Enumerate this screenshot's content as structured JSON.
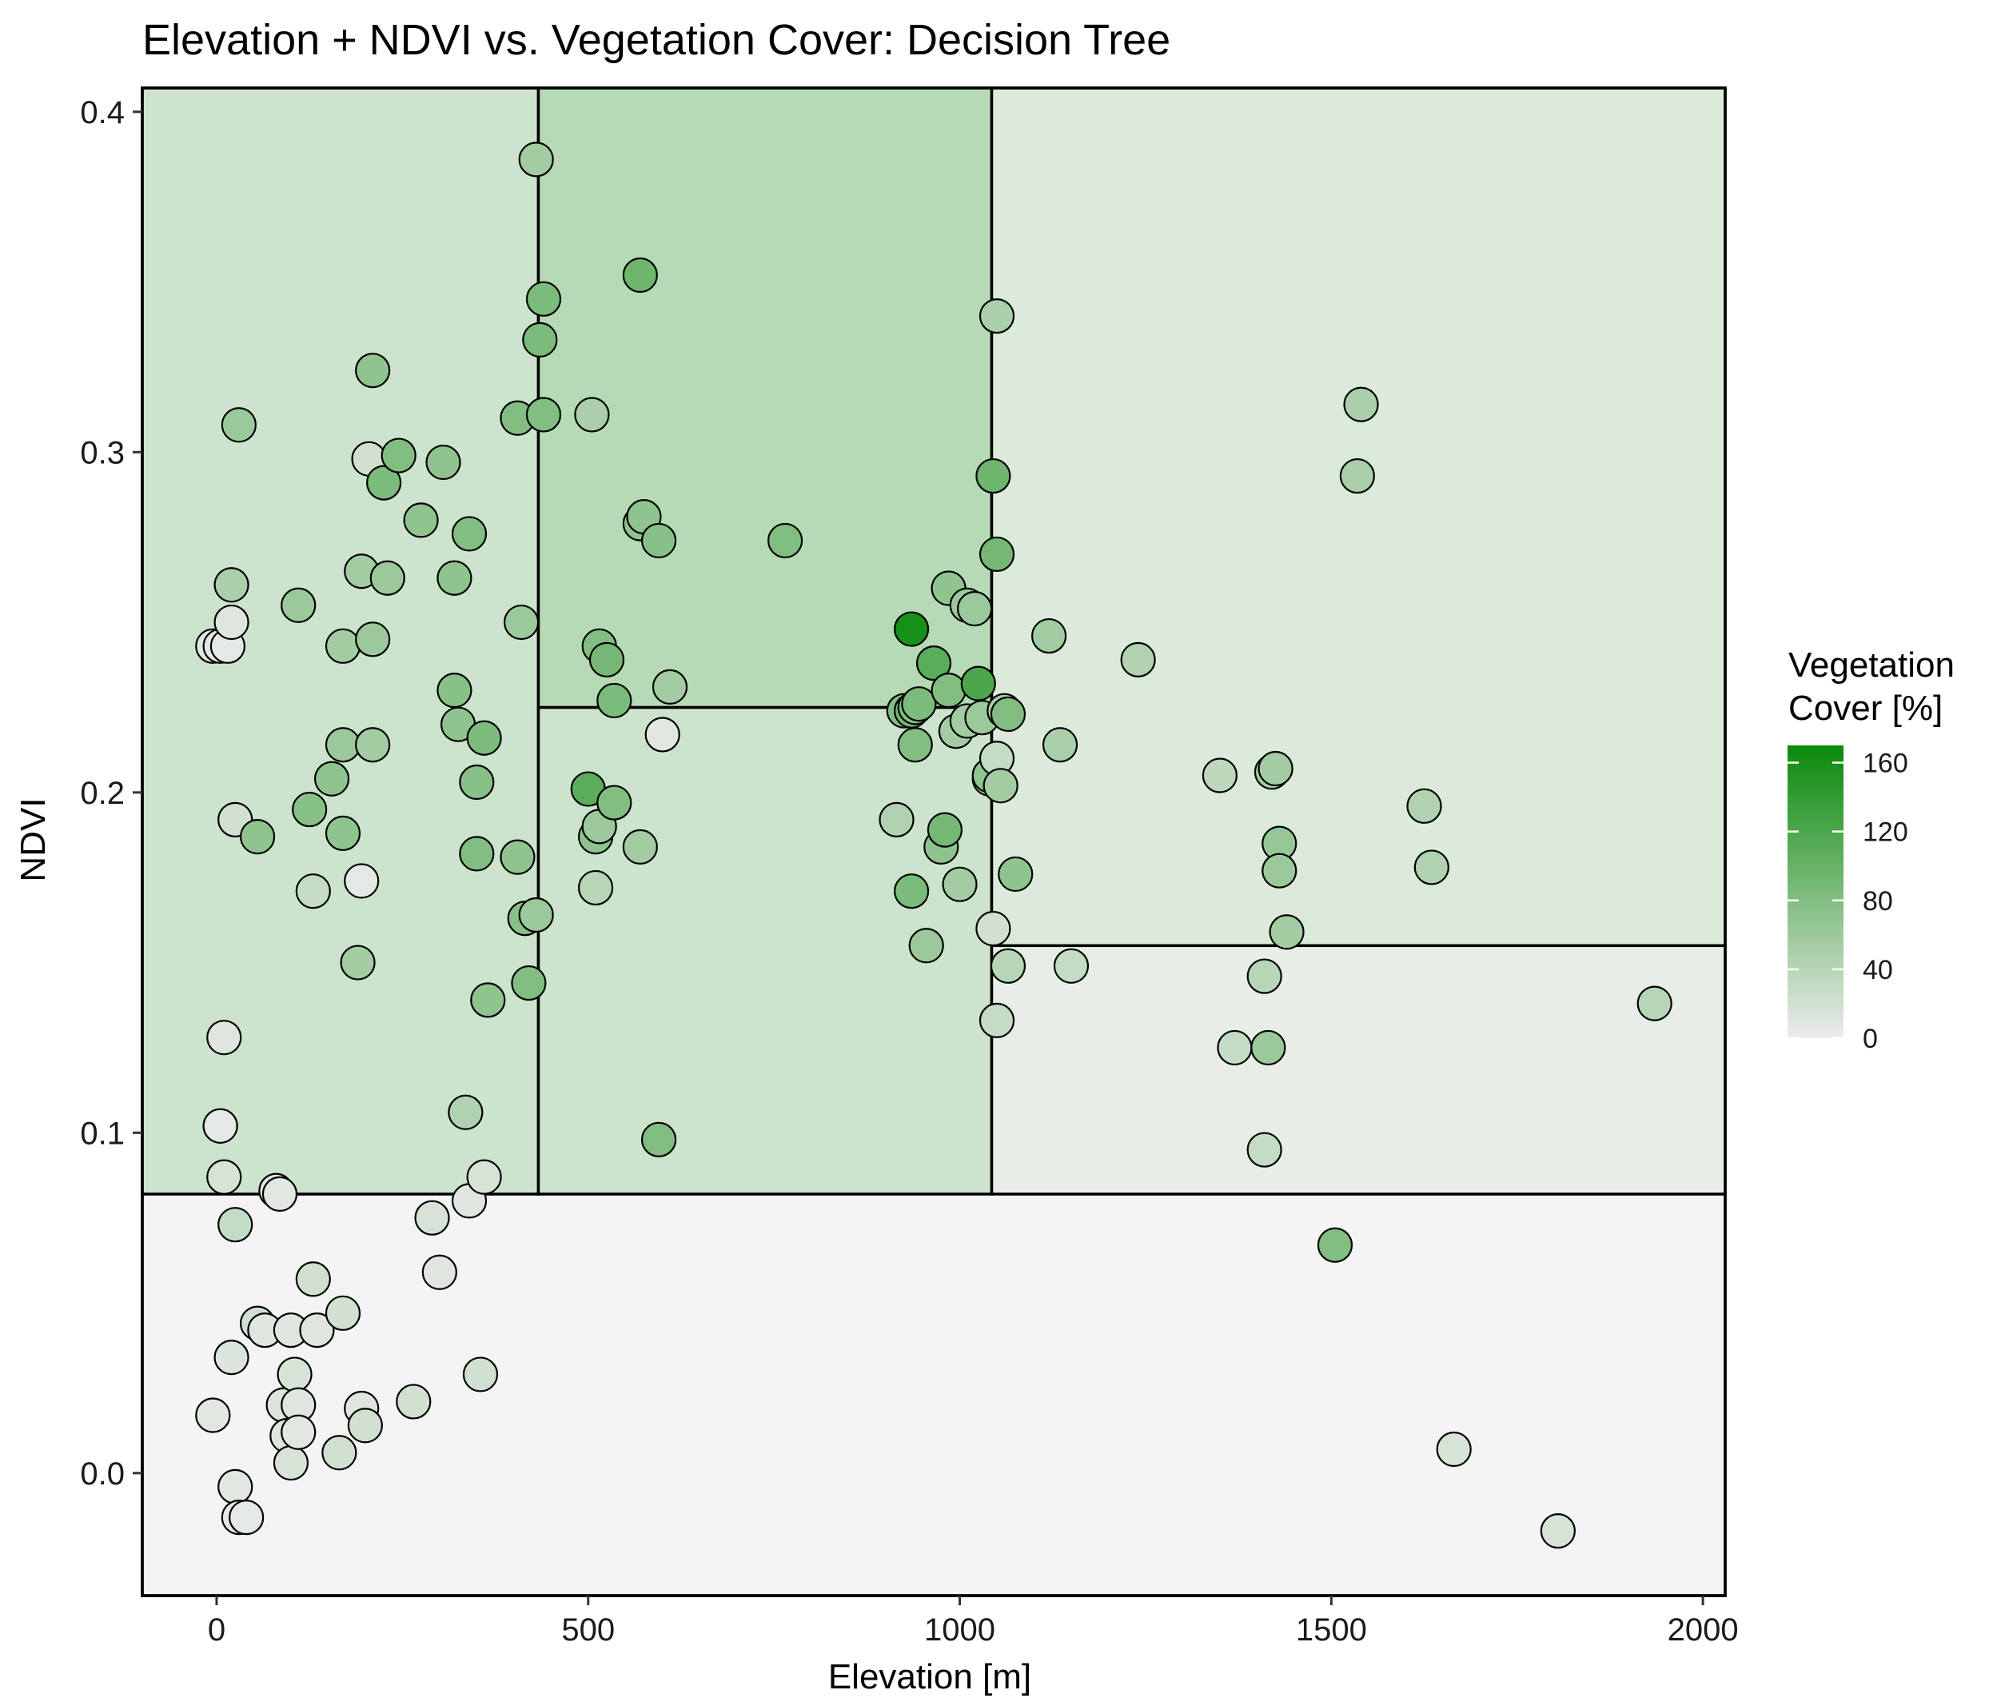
{
  "chart_data": {
    "type": "scatter",
    "title": "Elevation + NDVI vs. Vegetation Cover: Decision Tree",
    "xlabel": "Elevation [m]",
    "ylabel": "NDVI",
    "xlim": [
      -100,
      2030
    ],
    "ylim": [
      -0.036,
      0.407
    ],
    "x_ticks": [
      0,
      500,
      1000,
      1500,
      2000
    ],
    "y_ticks": [
      0.0,
      0.1,
      0.2,
      0.3,
      0.4
    ],
    "y_tick_labels": [
      "0.0",
      "0.1",
      "0.2",
      "0.3",
      "0.4"
    ],
    "grid": false,
    "legend": {
      "title_line1": "Vegetation",
      "title_line2": "Cover [%]",
      "placement": "right",
      "min": 0,
      "max": 170,
      "ticks": [
        0,
        40,
        80,
        120,
        160
      ],
      "color_low": "#ececec",
      "color_high": "#0a8a0a"
    },
    "regions": [
      {
        "x0": -100,
        "x1": 2030,
        "y0": -0.036,
        "y1": 0.082,
        "value": 2
      },
      {
        "x0": -100,
        "x1": 433,
        "y0": 0.082,
        "y1": 0.407,
        "value": 55
      },
      {
        "x0": 433,
        "x1": 1043,
        "y0": 0.082,
        "y1": 0.225,
        "value": 55
      },
      {
        "x0": 433,
        "x1": 1043,
        "y0": 0.225,
        "y1": 0.407,
        "value": 85
      },
      {
        "x0": 1043,
        "x1": 2030,
        "y0": 0.082,
        "y1": 0.155,
        "value": 20
      },
      {
        "x0": 1043,
        "x1": 2030,
        "y0": 0.155,
        "y1": 0.407,
        "value": 35
      }
    ],
    "points": [
      [
        -5,
        0.017,
        8
      ],
      [
        5,
        0.102,
        5
      ],
      [
        10,
        0.128,
        10
      ],
      [
        10,
        0.087,
        15
      ],
      [
        20,
        0.034,
        12
      ],
      [
        25,
        -0.004,
        8
      ],
      [
        25,
        0.073,
        30
      ],
      [
        30,
        -0.013,
        5
      ],
      [
        40,
        -0.013,
        5
      ],
      [
        55,
        0.044,
        20
      ],
      [
        65,
        0.042,
        10
      ],
      [
        80,
        0.083,
        10
      ],
      [
        85,
        0.082,
        8
      ],
      [
        90,
        0.02,
        12
      ],
      [
        95,
        0.011,
        10
      ],
      [
        100,
        0.003,
        15
      ],
      [
        100,
        0.042,
        10
      ],
      [
        105,
        0.029,
        15
      ],
      [
        110,
        0.02,
        10
      ],
      [
        110,
        0.012,
        8
      ],
      [
        130,
        0.057,
        20
      ],
      [
        135,
        0.042,
        10
      ],
      [
        165,
        0.006,
        20
      ],
      [
        170,
        0.047,
        20
      ],
      [
        195,
        0.019,
        10
      ],
      [
        200,
        0.014,
        20
      ],
      [
        265,
        0.021,
        20
      ],
      [
        290,
        0.075,
        15
      ],
      [
        300,
        0.059,
        10
      ],
      [
        340,
        0.08,
        10
      ],
      [
        355,
        0.029,
        20
      ],
      [
        360,
        0.087,
        15
      ],
      [
        -5,
        0.243,
        8
      ],
      [
        5,
        0.243,
        8
      ],
      [
        5,
        0.102,
        5
      ],
      [
        15,
        0.243,
        5
      ],
      [
        20,
        0.25,
        10
      ],
      [
        20,
        0.261,
        50
      ],
      [
        25,
        0.192,
        20
      ],
      [
        30,
        0.308,
        60
      ],
      [
        55,
        0.187,
        70
      ],
      [
        110,
        0.255,
        60
      ],
      [
        125,
        0.195,
        75
      ],
      [
        130,
        0.171,
        30
      ],
      [
        155,
        0.204,
        70
      ],
      [
        170,
        0.188,
        70
      ],
      [
        170,
        0.243,
        55
      ],
      [
        170,
        0.214,
        60
      ],
      [
        190,
        0.15,
        55
      ],
      [
        195,
        0.174,
        5
      ],
      [
        195,
        0.265,
        55
      ],
      [
        205,
        0.298,
        20
      ],
      [
        210,
        0.214,
        55
      ],
      [
        210,
        0.245,
        60
      ],
      [
        210,
        0.324,
        70
      ],
      [
        225,
        0.291,
        85
      ],
      [
        230,
        0.263,
        60
      ],
      [
        245,
        0.299,
        80
      ],
      [
        275,
        0.28,
        70
      ],
      [
        305,
        0.297,
        70
      ],
      [
        320,
        0.23,
        75
      ],
      [
        320,
        0.263,
        70
      ],
      [
        325,
        0.22,
        70
      ],
      [
        335,
        0.106,
        45
      ],
      [
        340,
        0.276,
        80
      ],
      [
        350,
        0.203,
        75
      ],
      [
        350,
        0.182,
        80
      ],
      [
        360,
        0.216,
        85
      ],
      [
        365,
        0.139,
        70
      ],
      [
        405,
        0.181,
        70
      ],
      [
        405,
        0.31,
        80
      ],
      [
        410,
        0.25,
        60
      ],
      [
        415,
        0.163,
        75
      ],
      [
        420,
        0.144,
        80
      ],
      [
        430,
        0.164,
        60
      ],
      [
        430,
        0.386,
        55
      ],
      [
        435,
        0.333,
        85
      ],
      [
        440,
        0.345,
        85
      ],
      [
        440,
        0.311,
        80
      ],
      [
        500,
        0.201,
        110
      ],
      [
        505,
        0.311,
        50
      ],
      [
        510,
        0.187,
        70
      ],
      [
        510,
        0.172,
        40
      ],
      [
        515,
        0.19,
        60
      ],
      [
        515,
        0.243,
        80
      ],
      [
        525,
        0.239,
        90
      ],
      [
        535,
        0.227,
        85
      ],
      [
        535,
        0.197,
        80
      ],
      [
        570,
        0.184,
        55
      ],
      [
        570,
        0.352,
        95
      ],
      [
        570,
        0.279,
        70
      ],
      [
        575,
        0.281,
        70
      ],
      [
        595,
        0.274,
        75
      ],
      [
        595,
        0.098,
        80
      ],
      [
        600,
        0.217,
        8
      ],
      [
        610,
        0.231,
        55
      ],
      [
        765,
        0.274,
        80
      ],
      [
        915,
        0.192,
        45
      ],
      [
        925,
        0.224,
        80
      ],
      [
        935,
        0.248,
        160
      ],
      [
        935,
        0.224,
        90
      ],
      [
        935,
        0.171,
        85
      ],
      [
        940,
        0.225,
        80
      ],
      [
        940,
        0.214,
        80
      ],
      [
        945,
        0.226,
        85
      ],
      [
        955,
        0.155,
        60
      ],
      [
        965,
        0.238,
        110
      ],
      [
        975,
        0.184,
        70
      ],
      [
        980,
        0.189,
        90
      ],
      [
        985,
        0.23,
        80
      ],
      [
        985,
        0.26,
        70
      ],
      [
        995,
        0.218,
        55
      ],
      [
        1000,
        0.173,
        55
      ],
      [
        1010,
        0.255,
        60
      ],
      [
        1010,
        0.221,
        55
      ],
      [
        1020,
        0.254,
        60
      ],
      [
        1025,
        0.232,
        120
      ],
      [
        1030,
        0.222,
        60
      ],
      [
        1040,
        0.204,
        60
      ],
      [
        1040,
        0.205,
        70
      ],
      [
        1045,
        0.16,
        20
      ],
      [
        1045,
        0.293,
        95
      ],
      [
        1050,
        0.133,
        30
      ],
      [
        1050,
        0.34,
        50
      ],
      [
        1050,
        0.27,
        90
      ],
      [
        1050,
        0.21,
        30
      ],
      [
        1055,
        0.202,
        55
      ],
      [
        1060,
        0.224,
        55
      ],
      [
        1065,
        0.149,
        40
      ],
      [
        1065,
        0.223,
        80
      ],
      [
        1075,
        0.176,
        70
      ],
      [
        1120,
        0.246,
        55
      ],
      [
        1135,
        0.214,
        50
      ],
      [
        1150,
        0.149,
        30
      ],
      [
        1240,
        0.239,
        45
      ],
      [
        1350,
        0.205,
        35
      ],
      [
        1370,
        0.125,
        30
      ],
      [
        1410,
        0.095,
        30
      ],
      [
        1410,
        0.146,
        40
      ],
      [
        1415,
        0.125,
        60
      ],
      [
        1420,
        0.206,
        55
      ],
      [
        1425,
        0.207,
        55
      ],
      [
        1430,
        0.185,
        65
      ],
      [
        1430,
        0.177,
        60
      ],
      [
        1440,
        0.159,
        55
      ],
      [
        1505,
        0.067,
        80
      ],
      [
        1535,
        0.293,
        50
      ],
      [
        1540,
        0.314,
        50
      ],
      [
        1625,
        0.196,
        45
      ],
      [
        1635,
        0.178,
        45
      ],
      [
        1665,
        0.007,
        15
      ],
      [
        1805,
        -0.017,
        15
      ],
      [
        1935,
        0.138,
        40
      ]
    ]
  }
}
